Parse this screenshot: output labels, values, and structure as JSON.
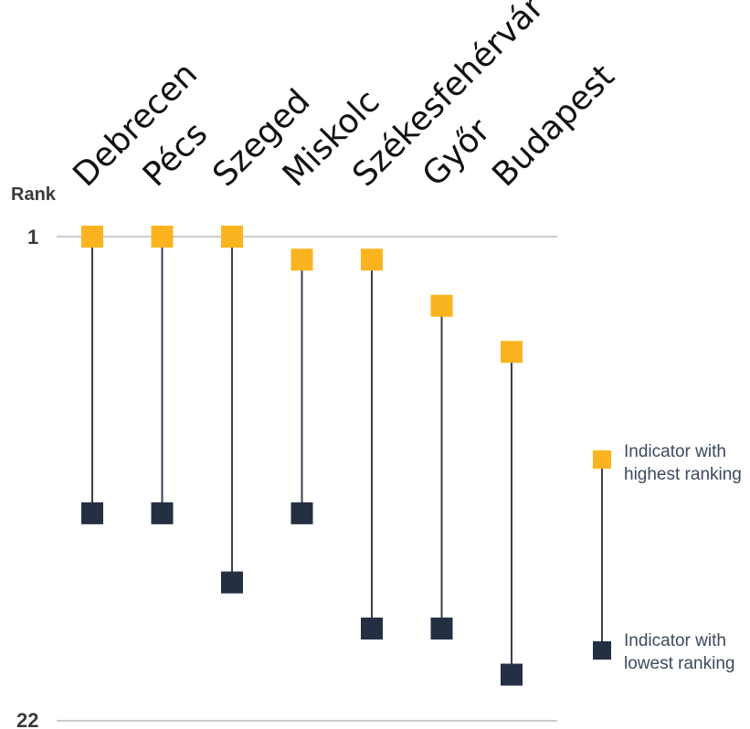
{
  "colors": {
    "high": "#fbb41f",
    "low": "#252f44",
    "stem": "#3a3f4d",
    "gridline": "#cccccc"
  },
  "chart_data": {
    "type": "dumbbell",
    "ylabel": "Rank",
    "ylim": [
      1,
      22
    ],
    "y_tick_labels": [
      "1",
      "22"
    ],
    "categories": [
      "Debrecen",
      "Pécs",
      "Szeged",
      "Miskolc",
      "Székesfehérvár",
      "Győr",
      "Budapest"
    ],
    "series": [
      {
        "name": "Indicator with highest ranking",
        "values": [
          1,
          1,
          1,
          2,
          2,
          4,
          6
        ]
      },
      {
        "name": "Indicator with lowest ranking",
        "values": [
          13,
          13,
          16,
          13,
          18,
          18,
          20
        ]
      }
    ],
    "legend": {
      "position": "right",
      "high_lines": [
        "Indicator with",
        "highest ranking"
      ],
      "low_lines": [
        "Indicator with",
        "lowest ranking"
      ]
    }
  }
}
